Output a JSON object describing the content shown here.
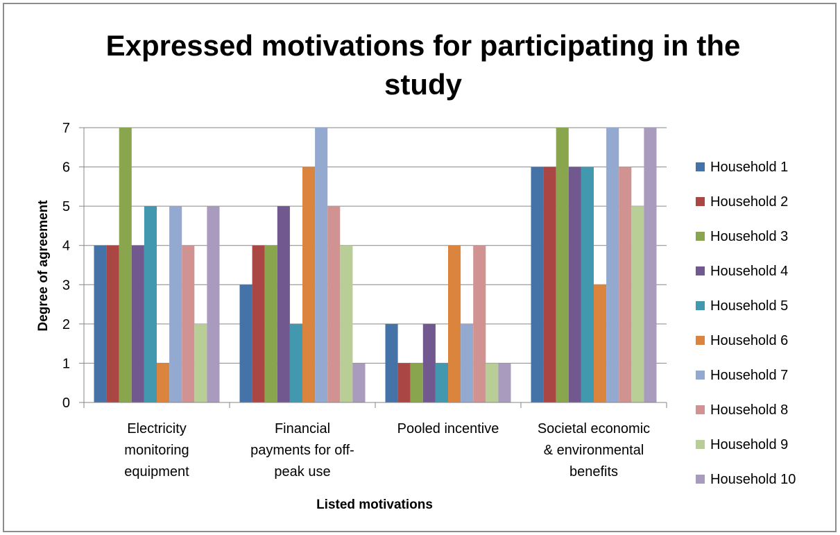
{
  "chart_data": {
    "type": "bar",
    "title": "Expressed motivations for participating in the study",
    "xlabel": "Listed motivations",
    "ylabel": "Degree of agreement",
    "ylim": [
      0,
      7
    ],
    "yticks": [
      0,
      1,
      2,
      3,
      4,
      5,
      6,
      7
    ],
    "grid": true,
    "legend_position": "right",
    "categories": [
      [
        "Electricity",
        "monitoring",
        "equipment"
      ],
      [
        "Financial",
        "payments for off-",
        "peak use"
      ],
      [
        "Pooled incentive"
      ],
      [
        "Societal economic",
        "& environmental",
        "benefits"
      ]
    ],
    "series": [
      {
        "name": "Household 1",
        "color": "#4572A7",
        "values": [
          4,
          3,
          2,
          6
        ]
      },
      {
        "name": "Household 2",
        "color": "#AA4643",
        "values": [
          4,
          4,
          1,
          6
        ]
      },
      {
        "name": "Household 3",
        "color": "#89A54E",
        "values": [
          7,
          4,
          1,
          7
        ]
      },
      {
        "name": "Household 4",
        "color": "#71588F",
        "values": [
          4,
          5,
          2,
          6
        ]
      },
      {
        "name": "Household 5",
        "color": "#4198AF",
        "values": [
          5,
          2,
          1,
          6
        ]
      },
      {
        "name": "Household 6",
        "color": "#DB843D",
        "values": [
          1,
          6,
          4,
          3
        ]
      },
      {
        "name": "Household 7",
        "color": "#93A9CF",
        "values": [
          5,
          7,
          2,
          7
        ]
      },
      {
        "name": "Household 8",
        "color": "#D19392",
        "values": [
          4,
          5,
          4,
          6
        ]
      },
      {
        "name": "Household 9",
        "color": "#B9CD96",
        "values": [
          2,
          4,
          1,
          5
        ]
      },
      {
        "name": "Household 10",
        "color": "#A99BBD",
        "values": [
          5,
          1,
          1,
          7
        ]
      }
    ]
  }
}
